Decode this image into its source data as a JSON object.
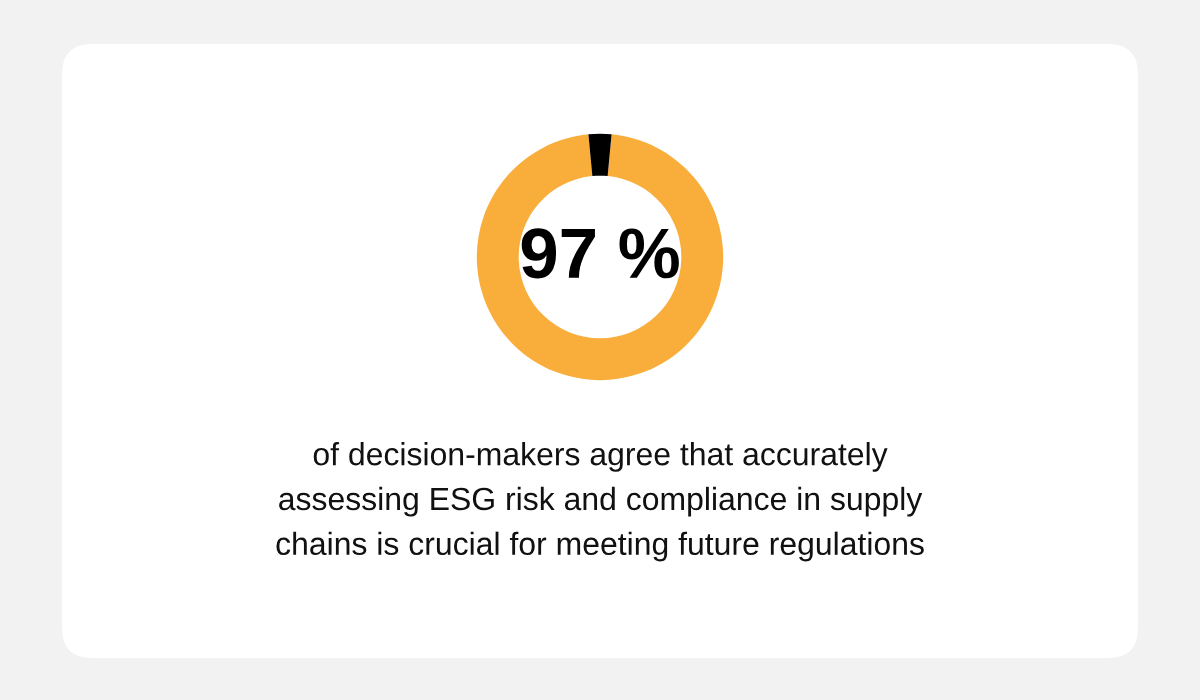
{
  "chart_data": {
    "type": "donut",
    "categories": [
      null,
      null
    ],
    "values": [
      97,
      3
    ],
    "colors": [
      "#f9ae3c",
      "#000000"
    ],
    "value_labels": [
      "97 %",
      null
    ],
    "annotations": [
      "of decision-makers agree that accurately\nassessing ESG risk and compliance in supply\nchains is crucial for meeting future regulations"
    ]
  }
}
